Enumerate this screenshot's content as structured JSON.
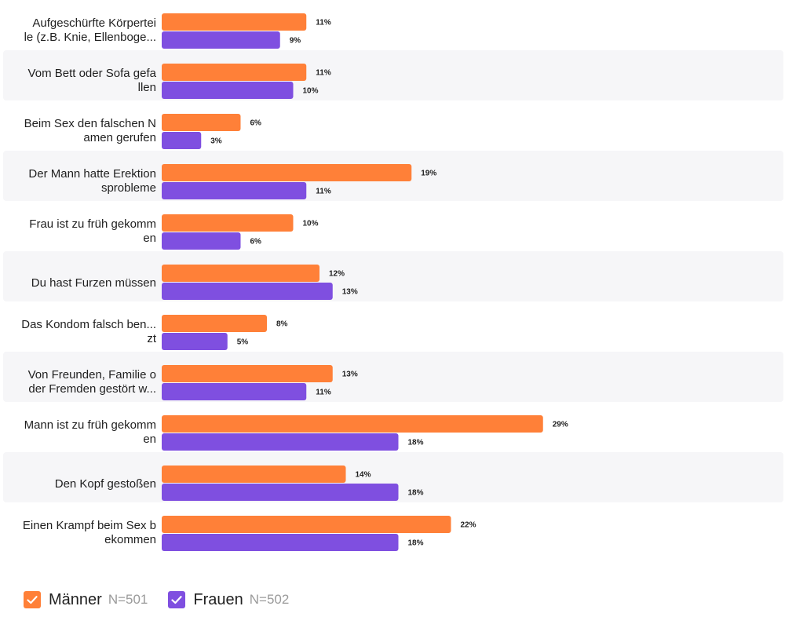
{
  "chart_data": {
    "type": "bar",
    "orientation": "horizontal",
    "categories": [
      [
        "Aufgeschürfte Körpertei",
        "le (z.B. Knie, Ellenboge..."
      ],
      [
        "Vom Bett oder Sofa gefa",
        "llen"
      ],
      [
        "Beim Sex den falschen N",
        "amen gerufen"
      ],
      [
        "Der Mann hatte Erektion",
        "sprobleme"
      ],
      [
        "Frau ist zu früh gekomm",
        "en"
      ],
      [
        "Du hast Furzen müssen"
      ],
      [
        "Das Kondom falsch ben...",
        "zt"
      ],
      [
        "Von Freunden, Familie o",
        "der Fremden gestört w..."
      ],
      [
        "Mann ist zu früh gekomm",
        "en"
      ],
      [
        "Den Kopf gestoßen"
      ],
      [
        "Einen Krampf beim Sex b",
        "ekommen"
      ]
    ],
    "series": [
      {
        "name": "Männer",
        "color": "#FF8038",
        "values": [
          11,
          11,
          6,
          19,
          10,
          12,
          8,
          13,
          29,
          14,
          22
        ]
      },
      {
        "name": "Frauen",
        "color": "#7F4FE0",
        "values": [
          9,
          10,
          3,
          11,
          6,
          13,
          5,
          11,
          18,
          18,
          18
        ]
      }
    ],
    "value_suffix": "%",
    "row_band_color": "#F6F6F8",
    "legend_position": "bottom-left",
    "grid": false
  },
  "legend": {
    "items": [
      {
        "name": "Männer",
        "n": "N=501",
        "color": "#FF8038"
      },
      {
        "name": "Frauen",
        "n": "N=502",
        "color": "#7F4FE0"
      }
    ]
  }
}
